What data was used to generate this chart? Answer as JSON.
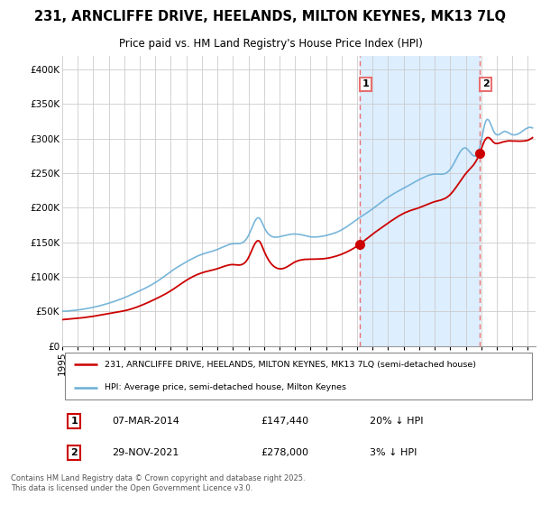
{
  "title": "231, ARNCLIFFE DRIVE, HEELANDS, MILTON KEYNES, MK13 7LQ",
  "subtitle": "Price paid vs. HM Land Registry's House Price Index (HPI)",
  "legend_property": "231, ARNCLIFFE DRIVE, HEELANDS, MILTON KEYNES, MK13 7LQ (semi-detached house)",
  "legend_hpi": "HPI: Average price, semi-detached house, Milton Keynes",
  "annotation1_date": "07-MAR-2014",
  "annotation1_price": "£147,440",
  "annotation1_hpi": "20% ↓ HPI",
  "annotation1_year": 2014.17,
  "annotation1_value": 147440,
  "annotation2_date": "29-NOV-2021",
  "annotation2_price": "£278,000",
  "annotation2_hpi": "3% ↓ HPI",
  "annotation2_year": 2021.91,
  "annotation2_value": 278000,
  "footer": "Contains HM Land Registry data © Crown copyright and database right 2025.\nThis data is licensed under the Open Government Licence v3.0.",
  "ylim": [
    0,
    420000
  ],
  "xlim_start": 1995,
  "xlim_end": 2025.5,
  "hpi_color": "#6aaed6",
  "property_color": "#cc0000",
  "annotation_line_color": "#e87070",
  "shade_color": "#ddeeff",
  "background_color": "#ffffff",
  "plot_bg_color": "#ffffff"
}
